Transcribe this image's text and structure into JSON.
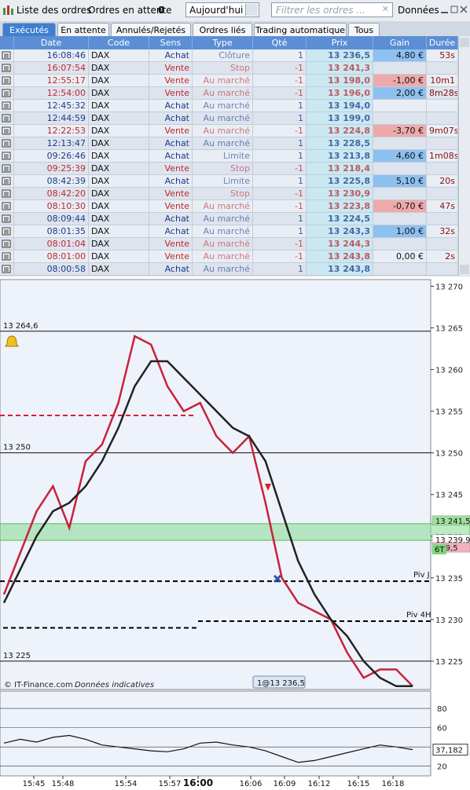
{
  "toolbar": {
    "title": "Liste des ordres",
    "pending_label": "Ordres en attente",
    "pending_count": "0",
    "period": "Aujourd'hui",
    "filter_placeholder": "Filtrer les ordres ...",
    "data_label": "Données"
  },
  "tabs": [
    "Exécutés",
    "En attente",
    "Annulés/Rejetés",
    "Ordres liés",
    "Trading automatique",
    "Tous"
  ],
  "table": {
    "columns": [
      "Date",
      "Code",
      "Sens",
      "Type",
      "Qté",
      "Prix",
      "Gain",
      "Durée"
    ],
    "rows": [
      {
        "date": "16:08:46",
        "code": "DAX",
        "sens": "Achat",
        "type": "Clôture",
        "qty": "1",
        "prix": "13 236,5",
        "gain": "4,80 €",
        "duree": "53s",
        "color": "#1c3a8a",
        "gain_color": "#8ec0f0"
      },
      {
        "date": "16:07:54",
        "code": "DAX",
        "sens": "Vente",
        "type": "Stop",
        "qty": "-1",
        "prix": "13 241,3",
        "gain": null,
        "duree": null,
        "color": "#c0282d",
        "gain_color": null
      },
      {
        "date": "12:55:17",
        "code": "DAX",
        "sens": "Vente",
        "type": "Au marché",
        "qty": "-1",
        "prix": "13 198,0",
        "gain": "-1,00 €",
        "duree": "10m1",
        "color": "#c0282d",
        "gain_color": "#eeaaaa"
      },
      {
        "date": "12:54:00",
        "code": "DAX",
        "sens": "Vente",
        "type": "Au marché",
        "qty": "-1",
        "prix": "13 196,0",
        "gain": "2,00 €",
        "duree": "8m28s",
        "color": "#c0282d",
        "gain_color": "#8ec0f0"
      },
      {
        "date": "12:45:32",
        "code": "DAX",
        "sens": "Achat",
        "type": "Au marché",
        "qty": "1",
        "prix": "13 194,0",
        "gain": null,
        "duree": null,
        "color": "#1c3a8a",
        "gain_color": null
      },
      {
        "date": "12:44:59",
        "code": "DAX",
        "sens": "Achat",
        "type": "Au marché",
        "qty": "1",
        "prix": "13 199,0",
        "gain": null,
        "duree": null,
        "color": "#1c3a8a",
        "gain_color": null
      },
      {
        "date": "12:22:53",
        "code": "DAX",
        "sens": "Vente",
        "type": "Au marché",
        "qty": "-1",
        "prix": "13 224,8",
        "gain": "-3,70 €",
        "duree": "9m07s",
        "color": "#c0282d",
        "gain_color": "#eeaaaa"
      },
      {
        "date": "12:13:47",
        "code": "DAX",
        "sens": "Achat",
        "type": "Au marché",
        "qty": "1",
        "prix": "13 228,5",
        "gain": null,
        "duree": null,
        "color": "#1c3a8a",
        "gain_color": null
      },
      {
        "date": "09:26:46",
        "code": "DAX",
        "sens": "Achat",
        "type": "Limite",
        "qty": "1",
        "prix": "13 213,8",
        "gain": "4,60 €",
        "duree": "1m08s",
        "color": "#1c3a8a",
        "gain_color": "#8ec0f0"
      },
      {
        "date": "09:25:39",
        "code": "DAX",
        "sens": "Vente",
        "type": "Stop",
        "qty": "-1",
        "prix": "13 218,4",
        "gain": null,
        "duree": null,
        "color": "#c0282d",
        "gain_color": null
      },
      {
        "date": "08:42:39",
        "code": "DAX",
        "sens": "Achat",
        "type": "Limite",
        "qty": "1",
        "prix": "13 225,8",
        "gain": "5,10 €",
        "duree": "20s",
        "color": "#1c3a8a",
        "gain_color": "#8ec0f0"
      },
      {
        "date": "08:42:20",
        "code": "DAX",
        "sens": "Vente",
        "type": "Stop",
        "qty": "-1",
        "prix": "13 230,9",
        "gain": null,
        "duree": null,
        "color": "#c0282d",
        "gain_color": null
      },
      {
        "date": "08:10:30",
        "code": "DAX",
        "sens": "Vente",
        "type": "Au marché",
        "qty": "-1",
        "prix": "13 223,8",
        "gain": "-0,70 €",
        "duree": "47s",
        "color": "#c0282d",
        "gain_color": "#eeaaaa"
      },
      {
        "date": "08:09:44",
        "code": "DAX",
        "sens": "Achat",
        "type": "Au marché",
        "qty": "1",
        "prix": "13 224,5",
        "gain": null,
        "duree": null,
        "color": "#1c3a8a",
        "gain_color": null
      },
      {
        "date": "08:01:35",
        "code": "DAX",
        "sens": "Achat",
        "type": "Au marché",
        "qty": "1",
        "prix": "13 243,3",
        "gain": "1,00 €",
        "duree": "32s",
        "color": "#1c3a8a",
        "gain_color": "#8ec0f0"
      },
      {
        "date": "08:01:04",
        "code": "DAX",
        "sens": "Vente",
        "type": "Au marché",
        "qty": "-1",
        "prix": "13 244,3",
        "gain": null,
        "duree": null,
        "color": "#c0282d",
        "gain_color": null
      },
      {
        "date": "08:01:00",
        "code": "DAX",
        "sens": "Vente",
        "type": "Au marché",
        "qty": "-1",
        "prix": "13 243,8",
        "gain": "0,00 €",
        "duree": "2s",
        "color": "#c0282d",
        "gain_color": null
      },
      {
        "date": "08:00:58",
        "code": "DAX",
        "sens": "Achat",
        "type": "Au marché",
        "qty": "1",
        "prix": "13 243,8",
        "gain": null,
        "duree": null,
        "color": "#1c3a8a",
        "gain_color": null
      }
    ]
  },
  "price_chart": {
    "type": "line",
    "ylim": [
      13221.6,
      13270.8
    ],
    "yticks": [
      {
        "value": 13270,
        "label": "13 270"
      },
      {
        "value": 13265,
        "label": "13 265"
      },
      {
        "value": 13260,
        "label": "13 260"
      },
      {
        "value": 13255,
        "label": "13 255"
      },
      {
        "value": 13250,
        "label": "13 250"
      },
      {
        "value": 13245,
        "label": "13 245"
      },
      {
        "value": 13240,
        "label": "13 240"
      },
      {
        "value": 13235,
        "label": "13 235"
      },
      {
        "value": 13230,
        "label": "13 230"
      },
      {
        "value": 13225,
        "label": "13 225"
      }
    ],
    "series": [
      {
        "color": "#c8223a",
        "values": [
          13233,
          13238,
          13243,
          13246,
          13241,
          13249,
          13251,
          13256,
          13264,
          13263,
          13258,
          13255,
          13256,
          13252,
          13250,
          13252,
          13244,
          13235,
          13232,
          13231,
          13230,
          13226,
          13223,
          13224,
          13224,
          13222
        ]
      },
      {
        "color": "#222222",
        "values": [
          13232,
          13236,
          13240,
          13243,
          13244,
          13246,
          13249,
          13253,
          13258,
          13261,
          13261,
          13259,
          13257,
          13255,
          13253,
          13252,
          13249,
          13243,
          13237,
          13233,
          13230,
          13228,
          13225,
          13223,
          13222,
          13222
        ]
      }
    ],
    "levels": [
      {
        "value": 13264.6,
        "label": "13 264,6"
      },
      {
        "value": 13250,
        "label": "13 250"
      },
      {
        "value": 13225,
        "label": "13 225"
      }
    ],
    "dashed_levels": [
      {
        "value": 13254.5,
        "color": "#dd2222"
      },
      {
        "value": 13234.6,
        "label": "Piv J",
        "color": "#000000"
      },
      {
        "value": 13229.8,
        "label": "Piv 4H",
        "color": "#000000"
      },
      {
        "value": 13229,
        "color": "#000000"
      }
    ],
    "zone": {
      "from": 13239.5,
      "to": 13241.5,
      "color": "#8fdc9a"
    },
    "price_labels": [
      {
        "value": 13241.5,
        "label": "13 241,5",
        "color": "#9ee09a"
      },
      {
        "value": 13239.9,
        "label": "13 239,9",
        "color": "#ffffff"
      },
      {
        "value": 13239.5,
        "label": "239,5",
        "color": "#f2b0c0"
      }
    ],
    "tag": "6T",
    "copyright": "© IT-Finance.com",
    "disclaimer": "Données indicatives",
    "position_label": "1@13 236,5",
    "xticks": [
      "15:45",
      "15:48",
      "15:54",
      "15:57",
      "16:00",
      "16:06",
      "16:09",
      "16:12",
      "16:15",
      "16:18"
    ]
  },
  "oscillator": {
    "type": "line",
    "ylim": [
      10,
      98
    ],
    "yticks": [
      80,
      60,
      40,
      20
    ],
    "series": [
      {
        "color": "#111111",
        "values": [
          44,
          48,
          45,
          50,
          52,
          48,
          42,
          40,
          38,
          36,
          35,
          38,
          44,
          45,
          42,
          40,
          36,
          30,
          24,
          26,
          30,
          34,
          38,
          42,
          40,
          37.182
        ]
      }
    ],
    "last_label": {
      "value": 37.182,
      "label": "37,182"
    }
  }
}
